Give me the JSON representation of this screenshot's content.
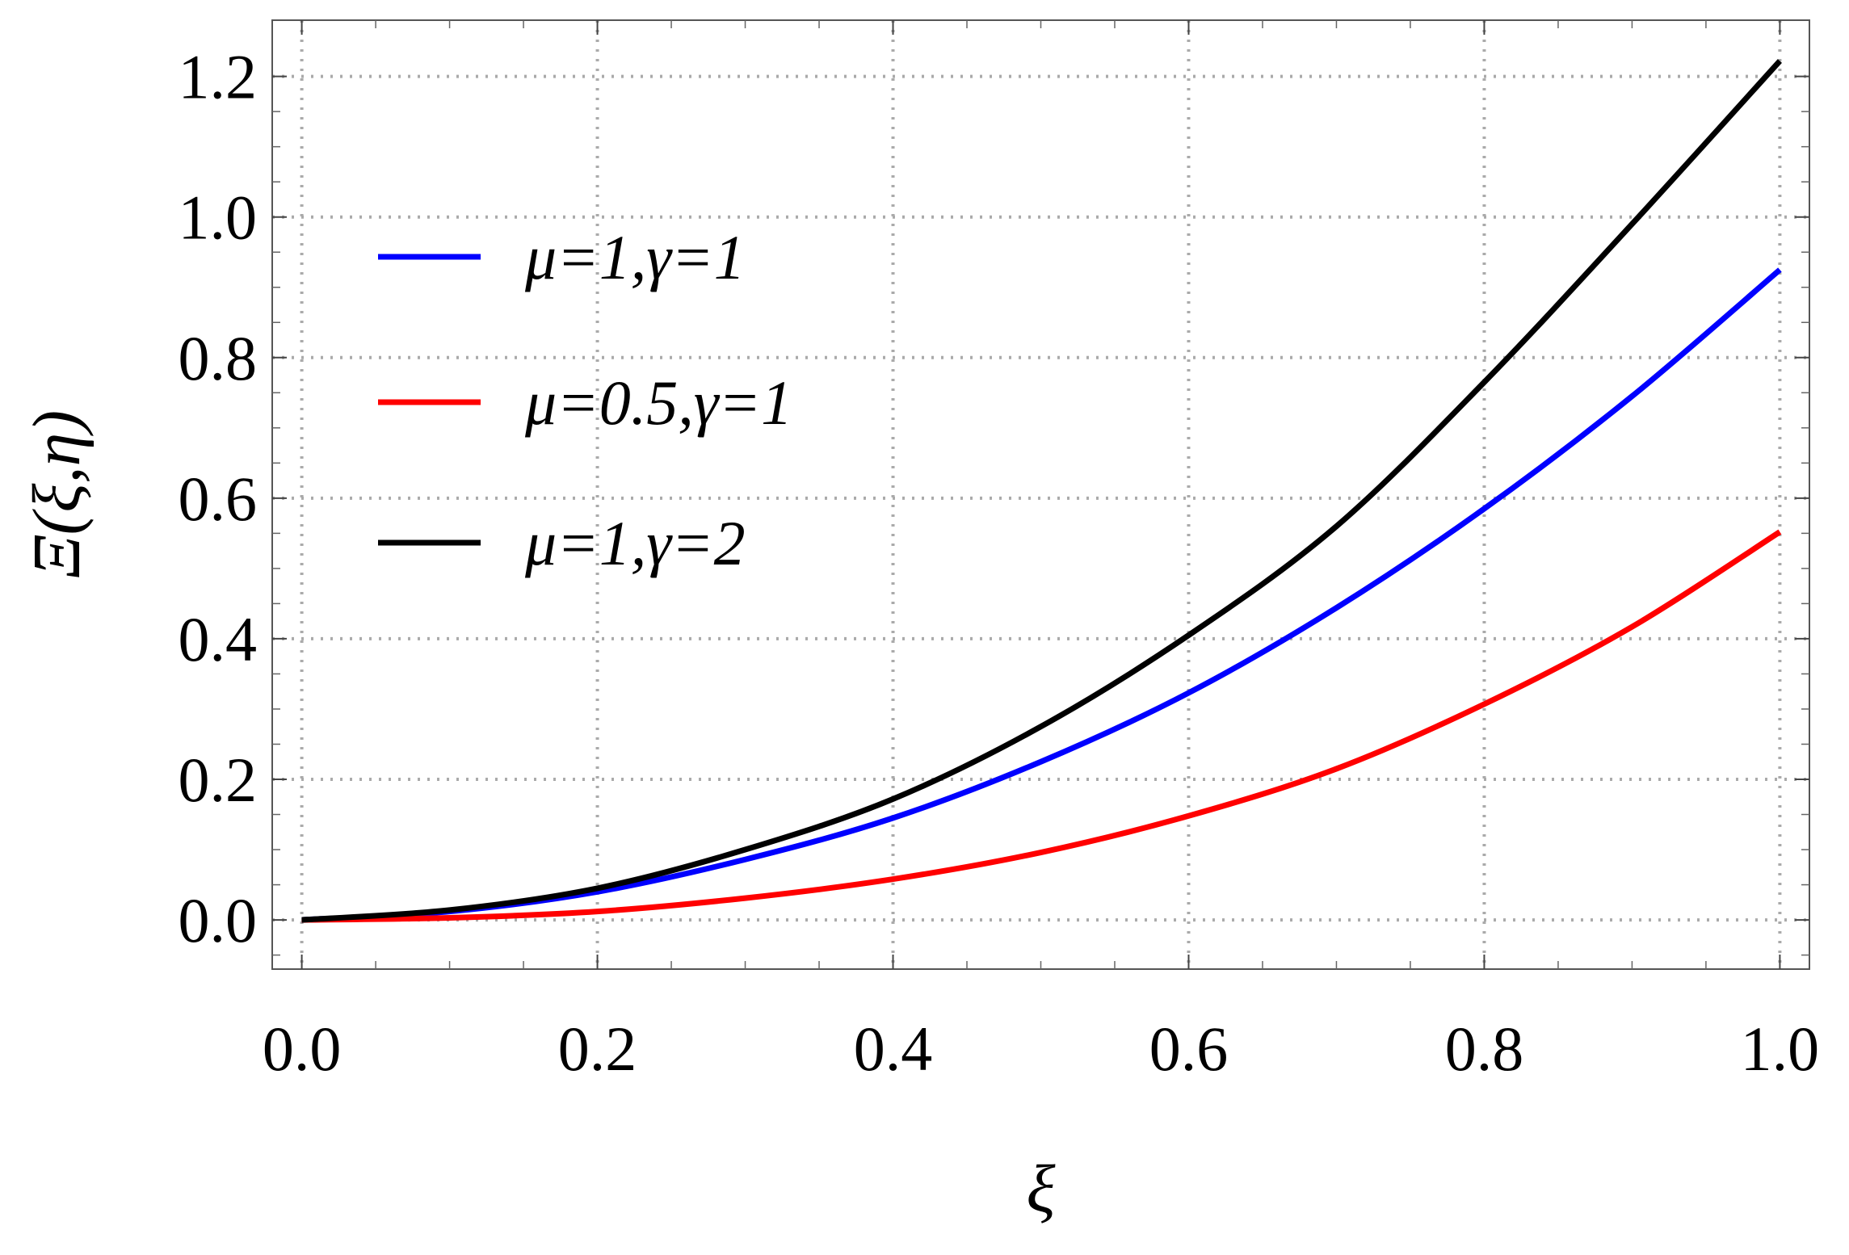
{
  "chart_data": {
    "type": "line",
    "xlabel": "ξ",
    "ylabel": "Ξ(ξ,η)",
    "xlim": [
      -0.02,
      1.02
    ],
    "ylim": [
      -0.07,
      1.28
    ],
    "x_ticks": [
      "0.0",
      "0.2",
      "0.4",
      "0.6",
      "0.8",
      "1.0"
    ],
    "y_ticks": [
      "0.0",
      "0.2",
      "0.4",
      "0.6",
      "0.8",
      "1.0",
      "1.2"
    ],
    "grid": true,
    "grid_style": "dotted",
    "legend_position": "top-left",
    "x": [
      0.0,
      0.1,
      0.2,
      0.3,
      0.4,
      0.5,
      0.6,
      0.7,
      0.8,
      0.9,
      1.0
    ],
    "series": [
      {
        "name": "μ=1,γ=1",
        "color": "#0000ff",
        "values": [
          0.0,
          0.012,
          0.04,
          0.086,
          0.145,
          0.225,
          0.323,
          0.444,
          0.585,
          0.745,
          0.925
        ]
      },
      {
        "name": "μ=0.5,γ=1",
        "color": "#ff0000",
        "values": [
          0.0,
          0.003,
          0.012,
          0.031,
          0.058,
          0.096,
          0.148,
          0.215,
          0.307,
          0.417,
          0.552
        ]
      },
      {
        "name": "μ=1,γ=2",
        "color": "#000000",
        "values": [
          0.0,
          0.014,
          0.045,
          0.1,
          0.172,
          0.275,
          0.405,
          0.56,
          0.765,
          0.99,
          1.222
        ]
      }
    ]
  }
}
